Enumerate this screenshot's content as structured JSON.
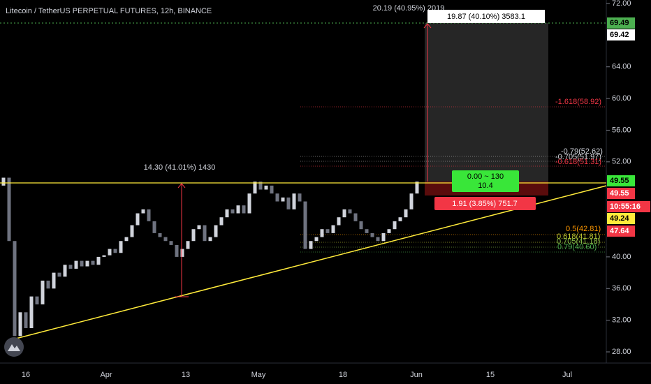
{
  "header": {
    "title": "Litecoin / TetherUS PERPETUAL FUTURES, 12h, BINANCE"
  },
  "chart_data": {
    "type": "candlestick",
    "first_open": 49,
    "closes": [
      50,
      42,
      30,
      33,
      31,
      35,
      34,
      37,
      36,
      38,
      37.5,
      39,
      38.5,
      39.5,
      38.8,
      39.5,
      39,
      40,
      40.2,
      41,
      40.5,
      42,
      42.5,
      44,
      45.5,
      46,
      44.5,
      43,
      42.5,
      42,
      41.5,
      40,
      41,
      42,
      43.5,
      44,
      42,
      42.5,
      44,
      45,
      46,
      45.5,
      46.5,
      45.5,
      48,
      49.5,
      48.5,
      49,
      48,
      47,
      47.5,
      46,
      48,
      47,
      41,
      42,
      42.5,
      43.5,
      43,
      44,
      45,
      46,
      45.5,
      44.5,
      43.5,
      43,
      42.5,
      42,
      43,
      43.5,
      44.5,
      45,
      46,
      48,
      49.5
    ],
    "up_color": "#d1d4dc",
    "down_color": "#6f7380",
    "ylim": [
      28,
      72
    ],
    "yticks": [
      {
        "value": 72,
        "label": "72.00"
      },
      {
        "value": 64,
        "label": "64.00"
      },
      {
        "value": 60,
        "label": "60.00"
      },
      {
        "value": 56,
        "label": "56.00"
      },
      {
        "value": 52,
        "label": "52.00"
      },
      {
        "value": 40,
        "label": "40.00"
      },
      {
        "value": 36,
        "label": "36.00"
      },
      {
        "value": 32,
        "label": "32.00"
      },
      {
        "value": 28,
        "label": "28.00"
      }
    ],
    "x_labels": [
      "16",
      "Apr",
      "13",
      "May",
      "18",
      "Jun",
      "15",
      "Jul"
    ],
    "badges": [
      {
        "label": "69.49",
        "bg": "#4caf50",
        "fg": "#000000"
      },
      {
        "label": "69.42",
        "bg": "#ffffff",
        "fg": "#000000"
      },
      {
        "label": "49.55",
        "bg": "#39e639",
        "fg": "#000000"
      },
      {
        "label": "49.55",
        "bg": "#f23645",
        "fg": "#ffffff"
      },
      {
        "label": "10:55:16",
        "bg": "#f23645",
        "fg": "#ffffff"
      },
      {
        "label": "49.24",
        "bg": "#ffeb3b",
        "fg": "#000000"
      },
      {
        "label": "47.64",
        "bg": "#f23645",
        "fg": "#ffffff"
      }
    ],
    "annotations": {
      "measure_left": "14.30 (41.01%) 1430",
      "measure_top": "20.19 (40.95%) 2019",
      "target_box": "19.87 (40.10%) 3583.1",
      "position_line1": "0.00 ~ 130",
      "position_line2": "10.4",
      "stop_box": "1.91 (3.85%) 751.7"
    },
    "fib_labels": [
      {
        "label": "-1.618(58.92)",
        "color": "#f23645"
      },
      {
        "label": "-0.79(52.62)",
        "color": "#d1d4dc"
      },
      {
        "label": "-0.705(51.97)",
        "color": "#d1d4dc"
      },
      {
        "label": "-0.618(51.31)",
        "color": "#f23645"
      },
      {
        "label": "0.5(42.81)",
        "color": "#ff9800"
      },
      {
        "label": "0.618(41.81)",
        "color": "#c0ca33"
      },
      {
        "label": "0.705(41.18)",
        "color": "#8bc34a"
      },
      {
        "label": "0.79(40.60)",
        "color": "#4caf50"
      }
    ]
  }
}
